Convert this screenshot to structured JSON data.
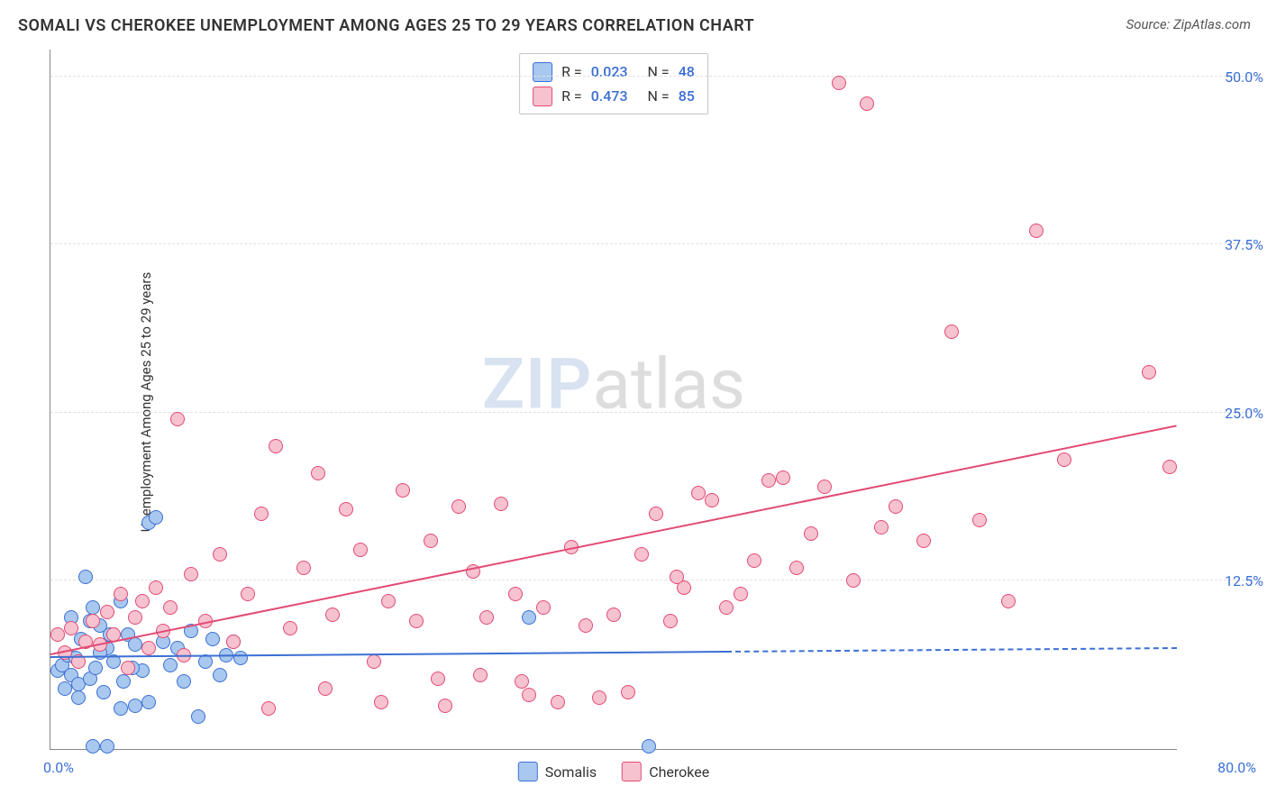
{
  "title": "SOMALI VS CHEROKEE UNEMPLOYMENT AMONG AGES 25 TO 29 YEARS CORRELATION CHART",
  "source": "Source: ZipAtlas.com",
  "ylabel": "Unemployment Among Ages 25 to 29 years",
  "watermark": {
    "part1": "ZIP",
    "part2": "atlas"
  },
  "chart": {
    "type": "scatter",
    "background_color": "#ffffff",
    "grid_color": "#e0e0e0",
    "axis_color": "#888888",
    "tick_label_color": "#3b6fd4",
    "xlim": [
      0,
      80
    ],
    "ylim": [
      0,
      52
    ],
    "x_tick_left": "0.0%",
    "x_tick_right": "80.0%",
    "y_ticks": [
      {
        "value": 12.5,
        "label": "12.5%"
      },
      {
        "value": 25.0,
        "label": "25.0%"
      },
      {
        "value": 37.5,
        "label": "37.5%"
      },
      {
        "value": 50.0,
        "label": "50.0%"
      }
    ],
    "point_radius": 8,
    "point_border_width": 1.2,
    "point_fill_opacity": 0.35,
    "trend_line_width": 2,
    "series": [
      {
        "id": "somalis",
        "label": "Somalis",
        "color_fill": "#a9c8ef",
        "color_stroke": "#3b6fd4",
        "R": "0.023",
        "N": "48",
        "trend": {
          "x1": 0,
          "y1": 6.8,
          "x2": 48,
          "y2": 7.2,
          "dash_to_x": 80
        },
        "points": [
          [
            0.5,
            5.8
          ],
          [
            0.8,
            6.2
          ],
          [
            1.0,
            4.5
          ],
          [
            1.2,
            7.0
          ],
          [
            1.5,
            5.5
          ],
          [
            1.8,
            6.8
          ],
          [
            2.0,
            4.8
          ],
          [
            2.2,
            8.2
          ],
          [
            2.5,
            12.8
          ],
          [
            2.8,
            5.2
          ],
          [
            3.0,
            10.5
          ],
          [
            3.2,
            6.0
          ],
          [
            3.5,
            9.2
          ],
          [
            3.8,
            4.2
          ],
          [
            4.0,
            7.5
          ],
          [
            4.5,
            6.5
          ],
          [
            5.0,
            11.0
          ],
          [
            5.2,
            5.0
          ],
          [
            5.5,
            8.5
          ],
          [
            6.0,
            7.8
          ],
          [
            6.5,
            5.8
          ],
          [
            7.0,
            16.8
          ],
          [
            7.5,
            17.2
          ],
          [
            8.0,
            8.0
          ],
          [
            8.5,
            6.2
          ],
          [
            9.0,
            7.5
          ],
          [
            9.5,
            5.0
          ],
          [
            10.0,
            8.8
          ],
          [
            10.5,
            2.4
          ],
          [
            11.0,
            6.5
          ],
          [
            11.5,
            8.2
          ],
          [
            12.0,
            5.5
          ],
          [
            12.5,
            7.0
          ],
          [
            13.0,
            8.0
          ],
          [
            13.5,
            6.8
          ],
          [
            3.0,
            0.2
          ],
          [
            4.0,
            0.2
          ],
          [
            34.0,
            9.8
          ],
          [
            42.5,
            0.2
          ],
          [
            5.0,
            3.0
          ],
          [
            6.0,
            3.2
          ],
          [
            7.0,
            3.5
          ],
          [
            2.0,
            3.8
          ],
          [
            1.5,
            9.8
          ],
          [
            2.8,
            9.5
          ],
          [
            3.5,
            7.2
          ],
          [
            4.2,
            8.5
          ],
          [
            5.8,
            6.0
          ]
        ]
      },
      {
        "id": "cherokee",
        "label": "Cherokee",
        "color_fill": "#f6c2cf",
        "color_stroke": "#e24a74",
        "R": "0.473",
        "N": "85",
        "trend": {
          "x1": 0,
          "y1": 7.0,
          "x2": 80,
          "y2": 24.0
        },
        "points": [
          [
            0.5,
            8.5
          ],
          [
            1.0,
            7.2
          ],
          [
            1.5,
            9.0
          ],
          [
            2.0,
            6.5
          ],
          [
            2.5,
            8.0
          ],
          [
            3.0,
            9.5
          ],
          [
            3.5,
            7.8
          ],
          [
            4.0,
            10.2
          ],
          [
            4.5,
            8.5
          ],
          [
            5.0,
            11.5
          ],
          [
            5.5,
            6.0
          ],
          [
            6.0,
            9.8
          ],
          [
            6.5,
            11.0
          ],
          [
            7.0,
            7.5
          ],
          [
            7.5,
            12.0
          ],
          [
            8.0,
            8.8
          ],
          [
            8.5,
            10.5
          ],
          [
            9.0,
            24.5
          ],
          [
            9.5,
            7.0
          ],
          [
            10.0,
            13.0
          ],
          [
            11.0,
            9.5
          ],
          [
            12.0,
            14.5
          ],
          [
            13.0,
            8.0
          ],
          [
            14.0,
            11.5
          ],
          [
            15.0,
            17.5
          ],
          [
            15.5,
            3.0
          ],
          [
            16.0,
            22.5
          ],
          [
            17.0,
            9.0
          ],
          [
            18.0,
            13.5
          ],
          [
            19.0,
            20.5
          ],
          [
            20.0,
            10.0
          ],
          [
            21.0,
            17.8
          ],
          [
            22.0,
            14.8
          ],
          [
            23.0,
            6.5
          ],
          [
            24.0,
            11.0
          ],
          [
            25.0,
            19.2
          ],
          [
            26.0,
            9.5
          ],
          [
            27.0,
            15.5
          ],
          [
            28.0,
            3.2
          ],
          [
            29.0,
            18.0
          ],
          [
            30.0,
            13.2
          ],
          [
            31.0,
            9.8
          ],
          [
            32.0,
            18.2
          ],
          [
            33.0,
            11.5
          ],
          [
            34.0,
            4.0
          ],
          [
            35.0,
            10.5
          ],
          [
            36.0,
            3.5
          ],
          [
            37.0,
            15.0
          ],
          [
            38.0,
            9.2
          ],
          [
            39.0,
            3.8
          ],
          [
            40.0,
            10.0
          ],
          [
            41.0,
            4.2
          ],
          [
            42.0,
            14.5
          ],
          [
            43.0,
            17.5
          ],
          [
            44.0,
            9.5
          ],
          [
            45.0,
            12.0
          ],
          [
            46.0,
            19.0
          ],
          [
            47.0,
            18.5
          ],
          [
            48.0,
            10.5
          ],
          [
            50.0,
            14.0
          ],
          [
            51.0,
            20.0
          ],
          [
            52.0,
            20.2
          ],
          [
            53.0,
            13.5
          ],
          [
            54.0,
            16.0
          ],
          [
            55.0,
            19.5
          ],
          [
            56.0,
            49.5
          ],
          [
            58.0,
            48.0
          ],
          [
            57.0,
            12.5
          ],
          [
            59.0,
            16.5
          ],
          [
            60.0,
            18.0
          ],
          [
            62.0,
            15.5
          ],
          [
            64.0,
            31.0
          ],
          [
            66.0,
            17.0
          ],
          [
            68.0,
            11.0
          ],
          [
            70.0,
            38.5
          ],
          [
            72.0,
            21.5
          ],
          [
            78.0,
            28.0
          ],
          [
            79.5,
            21.0
          ],
          [
            30.5,
            5.5
          ],
          [
            33.5,
            5.0
          ],
          [
            27.5,
            5.2
          ],
          [
            23.5,
            3.5
          ],
          [
            19.5,
            4.5
          ],
          [
            44.5,
            12.8
          ],
          [
            49.0,
            11.5
          ]
        ]
      }
    ],
    "legend_bottom": [
      {
        "label": "Somalis",
        "fill": "#a9c8ef",
        "stroke": "#3b6fd4"
      },
      {
        "label": "Cherokee",
        "fill": "#f6c2cf",
        "stroke": "#e24a74"
      }
    ]
  }
}
